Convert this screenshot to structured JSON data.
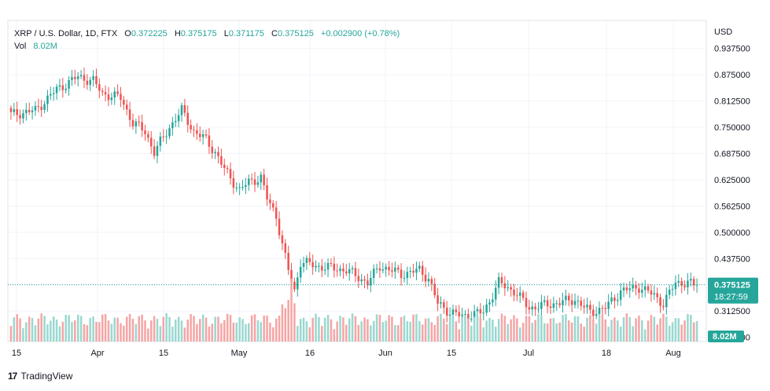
{
  "header": {
    "symbol": "XRP / U.S. Dollar, 1D, FTX",
    "o_label": "O",
    "o_value": "0.372225",
    "h_label": "H",
    "h_value": "0.375175",
    "l_label": "L",
    "l_value": "0.371175",
    "c_label": "C",
    "c_value": "0.375125",
    "change": "+0.002900 (+0.78%)",
    "vol_label": "Vol",
    "vol_value": "8.02M"
  },
  "currency": "USD",
  "price_badge": {
    "price": "0.375125",
    "countdown": "18:27:59"
  },
  "volume_badge": "8.02M",
  "footer": {
    "brand": "TradingView"
  },
  "colors": {
    "up": "#26a69a",
    "down": "#ef5350",
    "up_vol": "#9ad8d0",
    "down_vol": "#f6a5a5"
  },
  "chart_data": {
    "type": "candlestick",
    "y_ticks": [
      "0.937500",
      "0.875000",
      "0.812500",
      "0.750000",
      "0.687500",
      "0.625000",
      "0.562500",
      "0.500000",
      "0.437500",
      "0.375000",
      "0.312500",
      "0.250000"
    ],
    "x_ticks": [
      "15",
      "Apr",
      "15",
      "May",
      "16",
      "Jun",
      "15",
      "Jul",
      "18",
      "Aug"
    ],
    "ylim": [
      0.24,
      0.95
    ],
    "last_price": 0.375125,
    "close_waypoints": [
      [
        0,
        0.78
      ],
      [
        8,
        0.79
      ],
      [
        15,
        0.84
      ],
      [
        22,
        0.87
      ],
      [
        27,
        0.86
      ],
      [
        30,
        0.83
      ],
      [
        36,
        0.82
      ],
      [
        40,
        0.76
      ],
      [
        44,
        0.74
      ],
      [
        47,
        0.69
      ],
      [
        52,
        0.75
      ],
      [
        56,
        0.79
      ],
      [
        60,
        0.74
      ],
      [
        64,
        0.72
      ],
      [
        67,
        0.69
      ],
      [
        70,
        0.65
      ],
      [
        75,
        0.6
      ],
      [
        78,
        0.62
      ],
      [
        82,
        0.63
      ],
      [
        84,
        0.58
      ],
      [
        87,
        0.54
      ],
      [
        89,
        0.47
      ],
      [
        91,
        0.41
      ],
      [
        93,
        0.36
      ],
      [
        95,
        0.43
      ],
      [
        100,
        0.42
      ],
      [
        110,
        0.41
      ],
      [
        117,
        0.38
      ],
      [
        121,
        0.42
      ],
      [
        128,
        0.4
      ],
      [
        134,
        0.41
      ],
      [
        137,
        0.39
      ],
      [
        140,
        0.33
      ],
      [
        144,
        0.31
      ],
      [
        148,
        0.3
      ],
      [
        155,
        0.31
      ],
      [
        160,
        0.38
      ],
      [
        165,
        0.36
      ],
      [
        170,
        0.32
      ],
      [
        178,
        0.33
      ],
      [
        185,
        0.34
      ],
      [
        190,
        0.31
      ],
      [
        195,
        0.32
      ],
      [
        200,
        0.36
      ],
      [
        206,
        0.37
      ],
      [
        211,
        0.35
      ],
      [
        214,
        0.33
      ],
      [
        218,
        0.38
      ],
      [
        222,
        0.38
      ],
      [
        225,
        0.37
      ]
    ],
    "volume_note": "volume bars follow candle colors"
  }
}
